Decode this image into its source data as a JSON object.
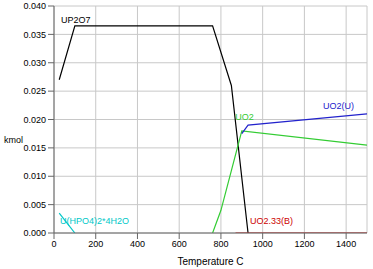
{
  "chart_data": {
    "type": "line",
    "x_label": "Temperature C",
    "y_label": "kmol",
    "xlim": [
      0,
      1500
    ],
    "xticks": [
      0,
      200,
      400,
      600,
      800,
      1000,
      1200,
      1400
    ],
    "ylim": [
      0,
      0.04
    ],
    "yticks": [
      {
        "value": 0,
        "label": "0.000"
      },
      {
        "value": 0.005,
        "label": "0.005"
      },
      {
        "value": 0.01,
        "label": "0.010"
      },
      {
        "value": 0.015,
        "label": "0.015"
      },
      {
        "value": 0.02,
        "label": "0.020"
      },
      {
        "value": 0.025,
        "label": "0.025"
      },
      {
        "value": 0.03,
        "label": "0.030"
      },
      {
        "value": 0.035,
        "label": "0.035"
      },
      {
        "value": 0.04,
        "label": "0.040"
      }
    ],
    "grid": true,
    "series": [
      {
        "name": "UP2O7",
        "color": "#000000",
        "x": [
          25,
          100,
          760,
          850,
          930
        ],
        "values": [
          0.027,
          0.0365,
          0.0365,
          0.026,
          0.0
        ]
      },
      {
        "name": "U(HPO4)2*4H2O",
        "color": "#00c8c8",
        "x": [
          25,
          100
        ],
        "values": [
          0.0035,
          0.0
        ]
      },
      {
        "name": "UO2",
        "color": "#33cc33",
        "x": [
          760,
          800,
          850,
          900,
          1500
        ],
        "values": [
          0.0,
          0.004,
          0.011,
          0.018,
          0.0155
        ]
      },
      {
        "name": "UO2(U)",
        "color": "#2222cc",
        "x": [
          900,
          930,
          1500
        ],
        "values": [
          0.0175,
          0.019,
          0.021
        ]
      },
      {
        "name": "UO2.33(B)",
        "color": "#cc0000",
        "x": [
          870,
          1500
        ],
        "values": [
          0.0,
          0.0
        ]
      }
    ]
  }
}
